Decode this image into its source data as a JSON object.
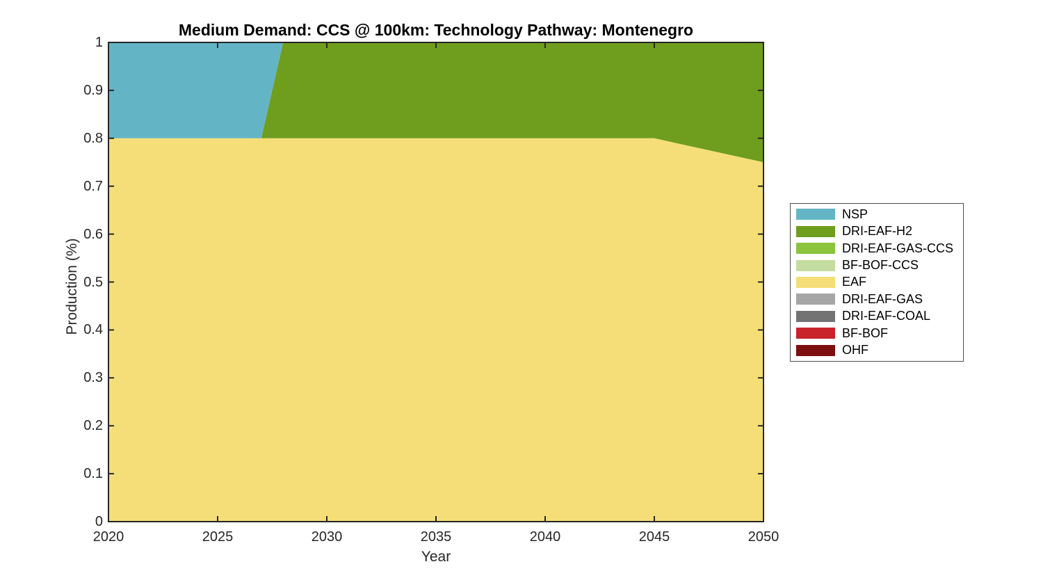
{
  "figure": {
    "title": "Medium Demand: CCS @ 100km: Technology Pathway: Montenegro",
    "xlabel": "Year",
    "ylabel": "Production (%)"
  },
  "axes": {
    "xticks": [
      2020,
      2025,
      2030,
      2035,
      2040,
      2045,
      2050
    ],
    "yticks": [
      0,
      0.1,
      0.2,
      0.3,
      0.4,
      0.5,
      0.6,
      0.7,
      0.8,
      0.9,
      1
    ],
    "ytick_labels": [
      "0",
      "0.1",
      "0.2",
      "0.3",
      "0.4",
      "0.5",
      "0.6",
      "0.7",
      "0.8",
      "0.9",
      "1"
    ],
    "frame_color": "#262626"
  },
  "legend": {
    "items": [
      {
        "label": "NSP",
        "color": "#63b5c6"
      },
      {
        "label": "DRI-EAF-H2",
        "color": "#6f9d1e"
      },
      {
        "label": "DRI-EAF-GAS-CCS",
        "color": "#8cc43e"
      },
      {
        "label": "BF-BOF-CCS",
        "color": "#c3dda0"
      },
      {
        "label": "EAF",
        "color": "#f5de78"
      },
      {
        "label": "DRI-EAF-GAS",
        "color": "#a6a6a6"
      },
      {
        "label": "DRI-EAF-COAL",
        "color": "#737373"
      },
      {
        "label": "BF-BOF",
        "color": "#c8232a"
      },
      {
        "label": "OHF",
        "color": "#7e0d10"
      }
    ]
  },
  "chart_data": {
    "type": "area",
    "stacked": true,
    "title": "Medium Demand: CCS @ 100km: Technology Pathway: Montenegro",
    "xlabel": "Year",
    "ylabel": "Production (%)",
    "xlim": [
      2020,
      2050
    ],
    "ylim": [
      0,
      1
    ],
    "grid": false,
    "legend_position": "right-outside",
    "stack_order_bottom_to_top": [
      "OHF",
      "BF-BOF",
      "DRI-EAF-COAL",
      "DRI-EAF-GAS",
      "EAF",
      "BF-BOF-CCS",
      "DRI-EAF-GAS-CCS",
      "DRI-EAF-H2",
      "NSP"
    ],
    "years": [
      2020,
      2021,
      2022,
      2023,
      2024,
      2025,
      2026,
      2027,
      2028,
      2029,
      2030,
      2031,
      2032,
      2033,
      2034,
      2035,
      2036,
      2037,
      2038,
      2039,
      2040,
      2041,
      2042,
      2043,
      2044,
      2045,
      2046,
      2047,
      2048,
      2049,
      2050
    ],
    "series": [
      {
        "name": "NSP",
        "values": [
          0.2,
          0.2,
          0.2,
          0.2,
          0.2,
          0.2,
          0.2,
          0.2,
          0,
          0,
          0,
          0,
          0,
          0,
          0,
          0,
          0,
          0,
          0,
          0,
          0,
          0,
          0,
          0,
          0,
          0,
          0,
          0,
          0,
          0,
          0
        ]
      },
      {
        "name": "DRI-EAF-H2",
        "values": [
          0,
          0,
          0,
          0,
          0,
          0,
          0,
          0,
          0.2,
          0.2,
          0.2,
          0.2,
          0.2,
          0.2,
          0.2,
          0.2,
          0.2,
          0.2,
          0.2,
          0.2,
          0.2,
          0.2,
          0.2,
          0.2,
          0.2,
          0.2,
          0.21,
          0.22,
          0.23,
          0.24,
          0.25
        ]
      },
      {
        "name": "DRI-EAF-GAS-CCS",
        "values": [
          0,
          0,
          0,
          0,
          0,
          0,
          0,
          0,
          0,
          0,
          0,
          0,
          0,
          0,
          0,
          0,
          0,
          0,
          0,
          0,
          0,
          0,
          0,
          0,
          0,
          0,
          0,
          0,
          0,
          0,
          0
        ]
      },
      {
        "name": "BF-BOF-CCS",
        "values": [
          0,
          0,
          0,
          0,
          0,
          0,
          0,
          0,
          0,
          0,
          0,
          0,
          0,
          0,
          0,
          0,
          0,
          0,
          0,
          0,
          0,
          0,
          0,
          0,
          0,
          0,
          0,
          0,
          0,
          0,
          0
        ]
      },
      {
        "name": "EAF",
        "values": [
          0.8,
          0.8,
          0.8,
          0.8,
          0.8,
          0.8,
          0.8,
          0.8,
          0.8,
          0.8,
          0.8,
          0.8,
          0.8,
          0.8,
          0.8,
          0.8,
          0.8,
          0.8,
          0.8,
          0.8,
          0.8,
          0.8,
          0.8,
          0.8,
          0.8,
          0.8,
          0.79,
          0.78,
          0.77,
          0.76,
          0.75
        ]
      },
      {
        "name": "DRI-EAF-GAS",
        "values": [
          0,
          0,
          0,
          0,
          0,
          0,
          0,
          0,
          0,
          0,
          0,
          0,
          0,
          0,
          0,
          0,
          0,
          0,
          0,
          0,
          0,
          0,
          0,
          0,
          0,
          0,
          0,
          0,
          0,
          0,
          0
        ]
      },
      {
        "name": "DRI-EAF-COAL",
        "values": [
          0,
          0,
          0,
          0,
          0,
          0,
          0,
          0,
          0,
          0,
          0,
          0,
          0,
          0,
          0,
          0,
          0,
          0,
          0,
          0,
          0,
          0,
          0,
          0,
          0,
          0,
          0,
          0,
          0,
          0,
          0
        ]
      },
      {
        "name": "BF-BOF",
        "values": [
          0,
          0,
          0,
          0,
          0,
          0,
          0,
          0,
          0,
          0,
          0,
          0,
          0,
          0,
          0,
          0,
          0,
          0,
          0,
          0,
          0,
          0,
          0,
          0,
          0,
          0,
          0,
          0,
          0,
          0,
          0
        ]
      },
      {
        "name": "OHF",
        "values": [
          0,
          0,
          0,
          0,
          0,
          0,
          0,
          0,
          0,
          0,
          0,
          0,
          0,
          0,
          0,
          0,
          0,
          0,
          0,
          0,
          0,
          0,
          0,
          0,
          0,
          0,
          0,
          0,
          0,
          0,
          0
        ]
      }
    ]
  }
}
